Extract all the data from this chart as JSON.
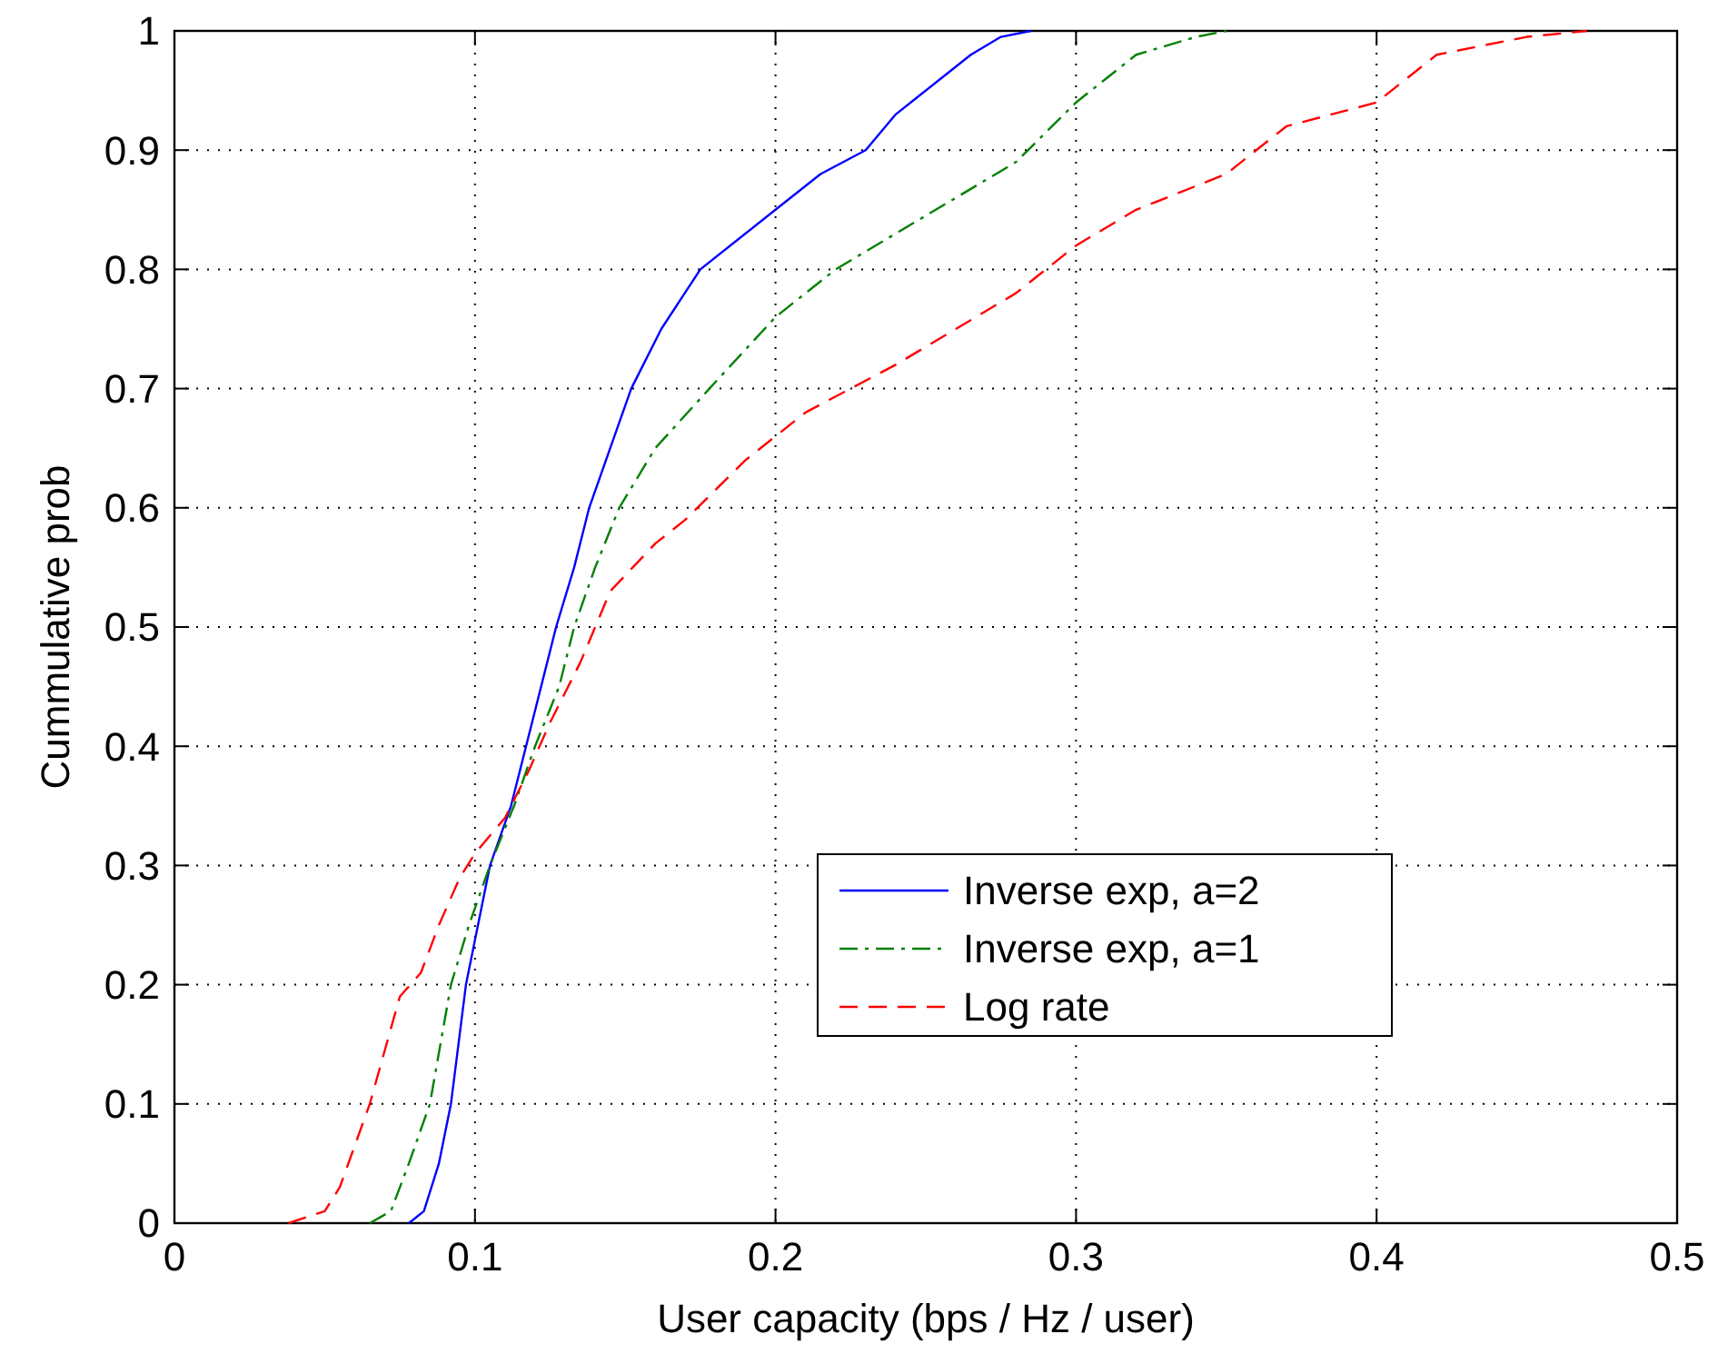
{
  "chart_data": {
    "type": "line",
    "xlabel": "User capacity (bps / Hz / user)",
    "ylabel": "Cummulative prob",
    "xlim": [
      0,
      0.5
    ],
    "ylim": [
      0,
      1
    ],
    "xticks": [
      0,
      0.1,
      0.2,
      0.3,
      0.4,
      0.5
    ],
    "yticks": [
      0,
      0.1,
      0.2,
      0.3,
      0.4,
      0.5,
      0.6,
      0.7,
      0.8,
      0.9,
      1
    ],
    "grid": true,
    "legend": "bottom right",
    "series": [
      {
        "name": "Inverse exp, a=2",
        "color": "#0000ff",
        "line_style": "solid",
        "x": [
          0.078,
          0.083,
          0.088,
          0.092,
          0.097,
          0.101,
          0.105,
          0.112,
          0.117,
          0.122,
          0.127,
          0.133,
          0.138,
          0.145,
          0.152,
          0.162,
          0.175,
          0.19,
          0.2,
          0.215,
          0.23,
          0.24,
          0.255,
          0.265,
          0.275,
          0.285
        ],
        "values": [
          0,
          0.01,
          0.05,
          0.1,
          0.2,
          0.25,
          0.3,
          0.35,
          0.4,
          0.45,
          0.5,
          0.55,
          0.6,
          0.65,
          0.7,
          0.75,
          0.8,
          0.83,
          0.85,
          0.88,
          0.9,
          0.93,
          0.96,
          0.98,
          0.995,
          1
        ]
      },
      {
        "name": "Inverse exp, a=1",
        "color": "#008000",
        "line_style": "dashdot",
        "x": [
          0.065,
          0.072,
          0.078,
          0.085,
          0.092,
          0.098,
          0.105,
          0.113,
          0.12,
          0.128,
          0.133,
          0.14,
          0.148,
          0.16,
          0.178,
          0.2,
          0.22,
          0.24,
          0.26,
          0.28,
          0.3,
          0.31,
          0.32,
          0.34,
          0.35
        ],
        "values": [
          0,
          0.01,
          0.05,
          0.1,
          0.2,
          0.25,
          0.3,
          0.35,
          0.4,
          0.45,
          0.5,
          0.55,
          0.6,
          0.65,
          0.7,
          0.76,
          0.8,
          0.83,
          0.86,
          0.89,
          0.94,
          0.96,
          0.98,
          0.995,
          1
        ]
      },
      {
        "name": "Log rate",
        "color": "#ff0000",
        "line_style": "dashed",
        "x": [
          0.038,
          0.05,
          0.055,
          0.065,
          0.075,
          0.082,
          0.088,
          0.095,
          0.1,
          0.11,
          0.118,
          0.125,
          0.135,
          0.145,
          0.16,
          0.17,
          0.19,
          0.21,
          0.24,
          0.26,
          0.28,
          0.3,
          0.32,
          0.35,
          0.37,
          0.4,
          0.41,
          0.42,
          0.45,
          0.47
        ],
        "values": [
          0,
          0.01,
          0.03,
          0.1,
          0.19,
          0.21,
          0.25,
          0.29,
          0.31,
          0.34,
          0.38,
          0.42,
          0.47,
          0.53,
          0.57,
          0.59,
          0.64,
          0.68,
          0.72,
          0.75,
          0.78,
          0.82,
          0.85,
          0.88,
          0.92,
          0.94,
          0.96,
          0.98,
          0.995,
          1
        ]
      }
    ]
  }
}
